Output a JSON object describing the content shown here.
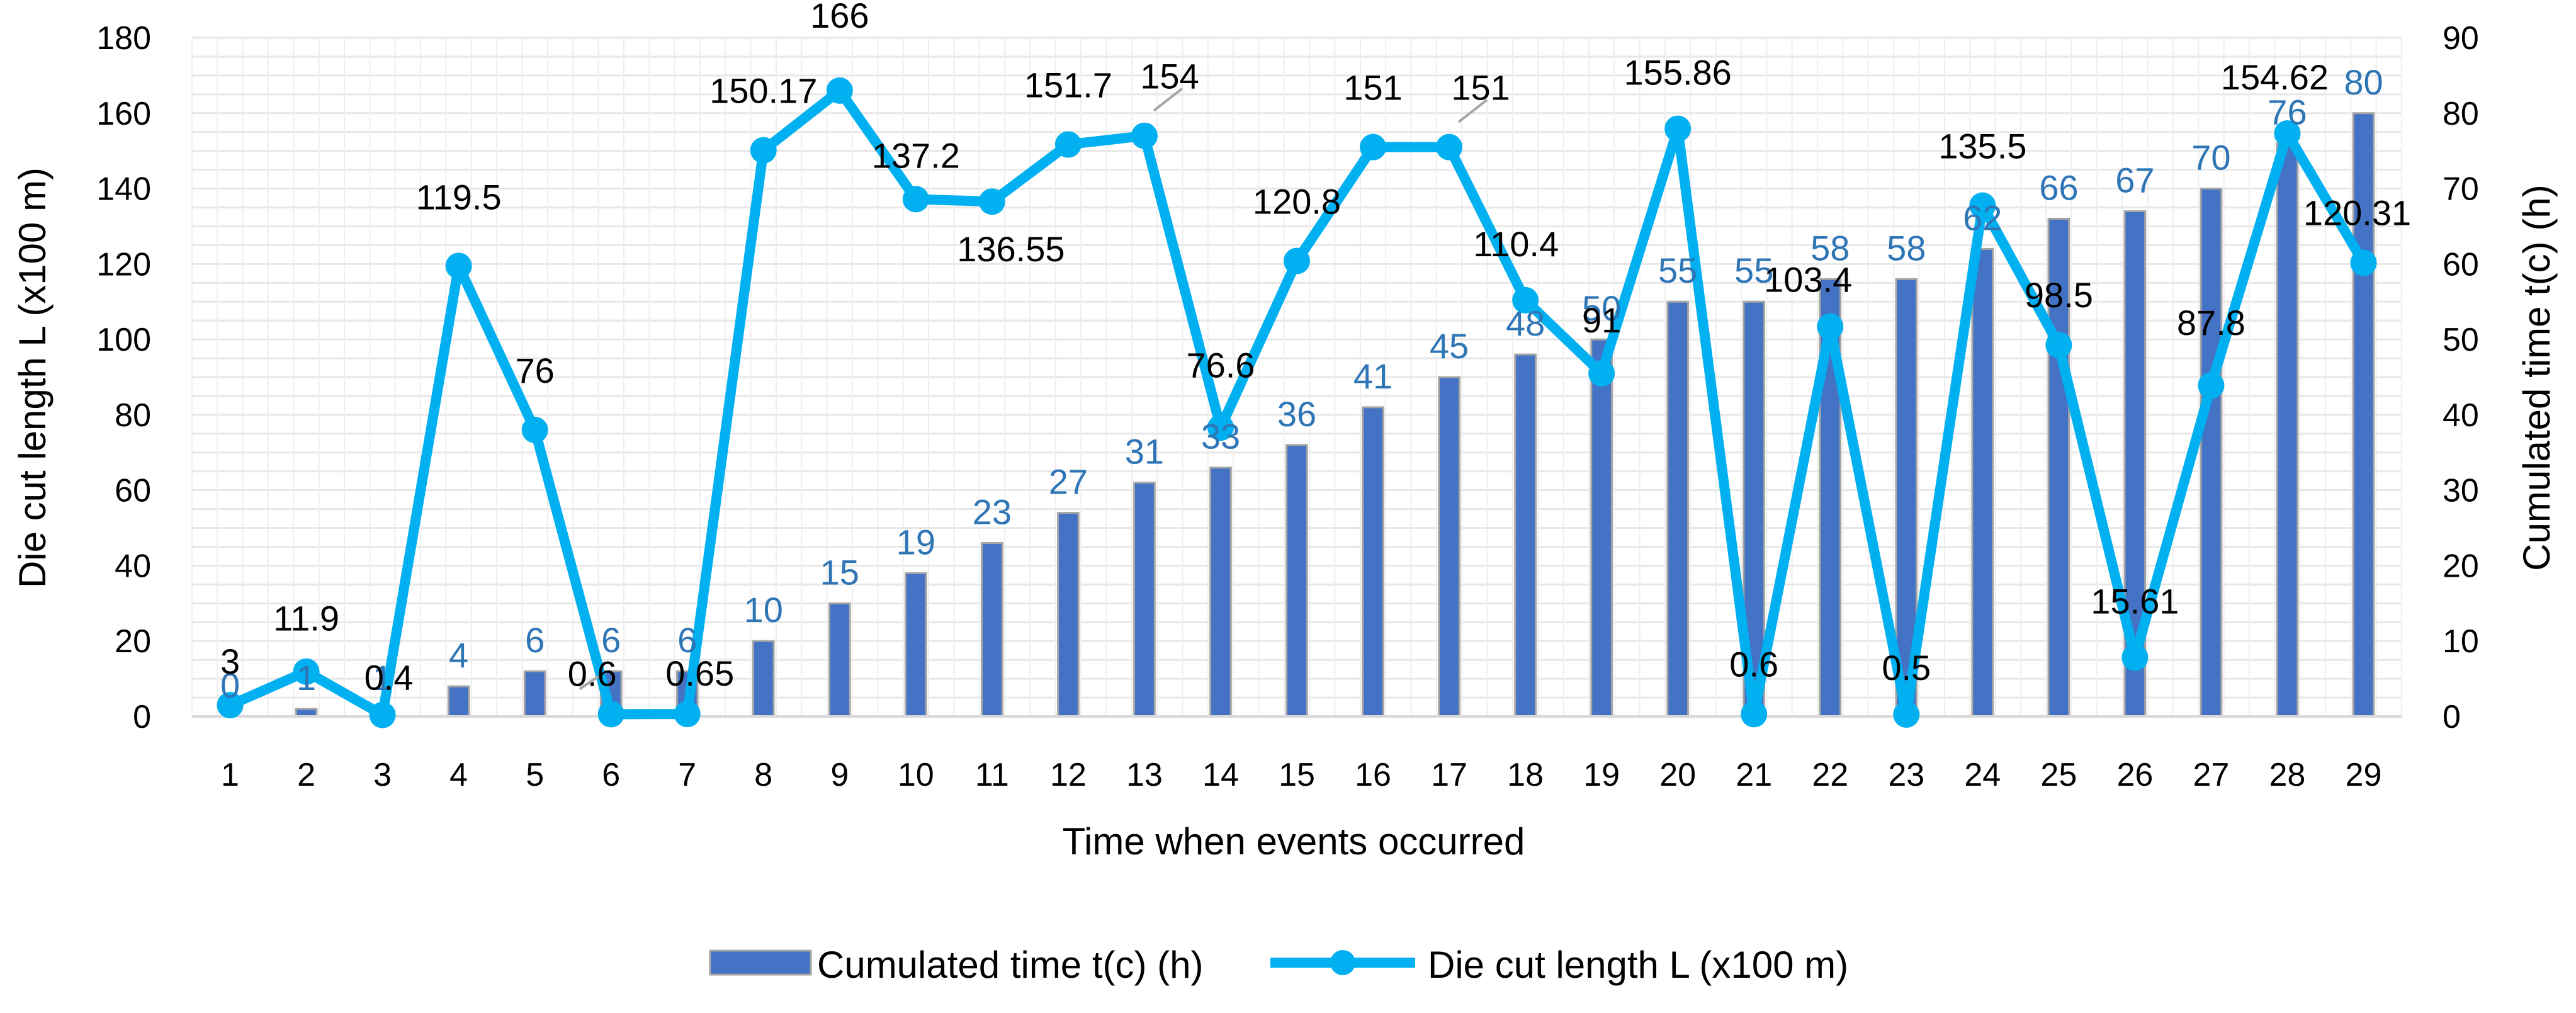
{
  "chart_data": {
    "type": "bar+line",
    "categories": [
      "1",
      "2",
      "3",
      "4",
      "5",
      "6",
      "7",
      "8",
      "9",
      "10",
      "11",
      "12",
      "13",
      "14",
      "15",
      "16",
      "17",
      "18",
      "19",
      "20",
      "21",
      "22",
      "23",
      "24",
      "25",
      "26",
      "27",
      "28",
      "29"
    ],
    "series": [
      {
        "name": "Cumulated time t(c) (h)",
        "type": "bar",
        "axis": "right",
        "color": "#4472C4",
        "values": [
          0,
          1,
          1,
          4,
          6,
          6,
          6,
          10,
          15,
          19,
          23,
          27,
          31,
          33,
          36,
          41,
          45,
          48,
          50,
          55,
          55,
          58,
          58,
          62,
          66,
          67,
          70,
          76,
          80
        ],
        "labels": [
          "0",
          "1",
          "1",
          "4",
          "6",
          "6",
          "6",
          "10",
          "15",
          "19",
          "23",
          "27",
          "31",
          "33",
          "36",
          "41",
          "45",
          "48",
          "50",
          "55",
          "55",
          "58",
          "58",
          "62",
          "66",
          "67",
          "70",
          "76",
          "80"
        ]
      },
      {
        "name": "Die cut length L (x100 m)",
        "type": "line",
        "axis": "left",
        "color": "#00B0F0",
        "values": [
          3,
          11.9,
          0.4,
          119.5,
          76,
          0.6,
          0.65,
          150.17,
          166,
          137.2,
          136.55,
          151.7,
          154,
          76.6,
          120.8,
          151,
          151,
          110.4,
          91,
          155.86,
          0.6,
          103.4,
          0.5,
          135.5,
          98.5,
          15.61,
          87.8,
          154.62,
          120.31
        ],
        "labels": [
          "3",
          "11.9",
          "0.4",
          "119.5",
          "76",
          "0.6",
          "0.65",
          "150.17",
          "166",
          "137.2",
          "136.55",
          "151.7",
          "154",
          "76.6",
          "120.8",
          "151",
          "151",
          "110.4",
          "91",
          "155.86",
          "0.6",
          "103.4",
          "0.5",
          "135.5",
          "98.5",
          "15.61",
          "87.8",
          "154.62",
          "120.31"
        ]
      }
    ],
    "xlabel": "Time when events occurred",
    "ylabel": "Die cut length L (x100 m)",
    "y2label": "Cumulated time t(c) (h)",
    "ylim": [
      0,
      180
    ],
    "y2lim": [
      0,
      90
    ],
    "yticks": [
      "0",
      "20",
      "40",
      "60",
      "80",
      "100",
      "120",
      "140",
      "160",
      "180"
    ],
    "y2ticks": [
      "0",
      "10",
      "20",
      "30",
      "40",
      "50",
      "60",
      "70",
      "80",
      "90"
    ],
    "grid": true,
    "legend_position": "bottom",
    "bar_label_color": "#2E75B6",
    "axis_color": "#D9D9D9"
  }
}
